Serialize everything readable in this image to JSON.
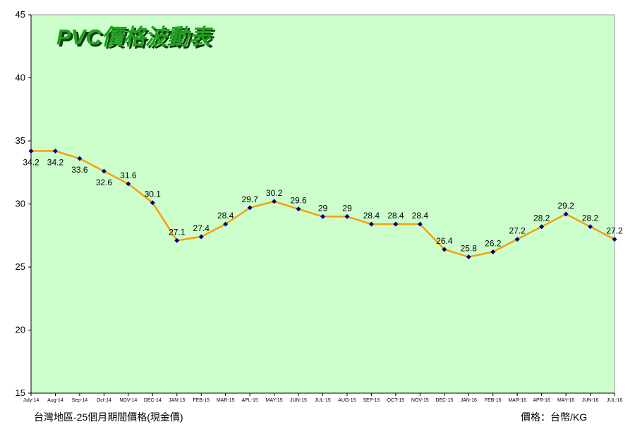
{
  "colors": {
    "plot_background": "#ccffcc",
    "line": "#f5a00c",
    "marker": "#000080",
    "title": "#1fa01f",
    "title_shadow": "#0b3b0b"
  },
  "footer": {
    "left_note": "台灣地區-25個月期間價格(現金價)",
    "right_note": "價格：台幣/KG"
  },
  "chart_data": {
    "type": "line",
    "title": "PVC價格波動表",
    "xlabel": "",
    "ylabel": "",
    "ylim": [
      15,
      45
    ],
    "yticks": [
      15,
      20,
      25,
      30,
      35,
      40,
      45
    ],
    "grid": false,
    "legend": "none",
    "categories": [
      "July-14",
      "Aug-14",
      "Sep-14",
      "Oct-14",
      "NOV-14",
      "DEC-14",
      "JAN-15",
      "FEB-15",
      "MAR-15",
      "APL-15",
      "MAY-15",
      "JUN-15",
      "JUL-15",
      "AUG-15",
      "SEP-15",
      "OCT-15",
      "NOV-15",
      "DEC-15",
      "JAN-16",
      "FEB-16",
      "MAR-16",
      "APR-16",
      "MAY-16",
      "JUN-16",
      "JUL-16"
    ],
    "series": [
      {
        "values": [
          34.2,
          34.2,
          33.6,
          32.6,
          31.6,
          30.1,
          27.1,
          27.4,
          28.4,
          29.7,
          30.2,
          29.6,
          29,
          29,
          28.4,
          28.4,
          28.4,
          26.4,
          25.8,
          26.2,
          27.2,
          28.2,
          29.2,
          28.2,
          27.2
        ],
        "data_labels": [
          "34.2",
          "34.2",
          "33.6",
          "32.6",
          "31.6",
          "30.1",
          "27.1",
          "27.4",
          "28.4",
          "29.7",
          "30.2",
          "29.6",
          "29",
          "29",
          "28.4",
          "28.4",
          "28.4",
          "26.4",
          "25.8",
          "26.2",
          "27.2",
          "28.2",
          "29.2",
          "28.2",
          "27.2"
        ]
      }
    ]
  }
}
